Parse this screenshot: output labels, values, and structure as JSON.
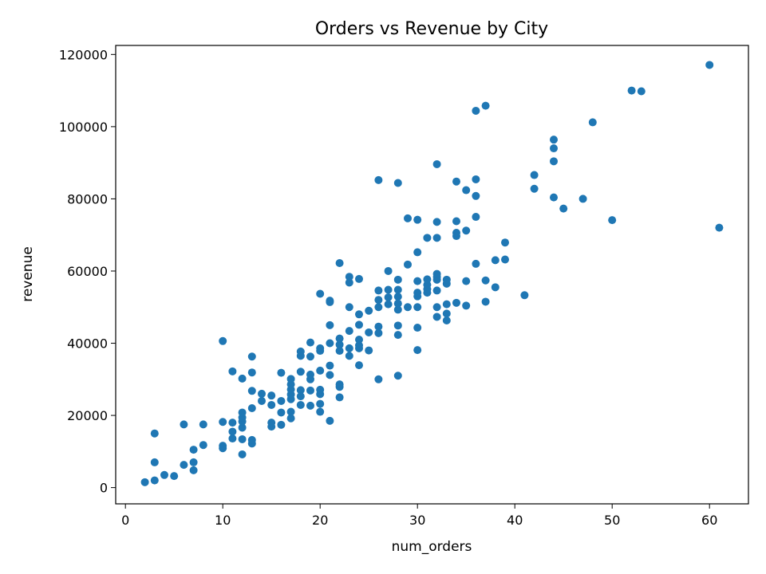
{
  "chart_data": {
    "type": "scatter",
    "title": "Orders vs Revenue by City",
    "xlabel": "num_orders",
    "ylabel": "revenue",
    "xlim": [
      -1,
      64
    ],
    "ylim": [
      -4500,
      122500
    ],
    "xticks": [
      0,
      10,
      20,
      30,
      40,
      50,
      60
    ],
    "yticks": [
      0,
      20000,
      40000,
      60000,
      80000,
      100000,
      120000
    ],
    "grid": false,
    "legend": "none",
    "marker_color": "#1f77b4",
    "points": [
      [
        2,
        1500
      ],
      [
        3,
        2000
      ],
      [
        3,
        7000
      ],
      [
        3,
        15000
      ],
      [
        4,
        3500
      ],
      [
        5,
        3200
      ],
      [
        6,
        6300
      ],
      [
        6,
        17500
      ],
      [
        7,
        4800
      ],
      [
        7,
        7000
      ],
      [
        7,
        10500
      ],
      [
        8,
        11800
      ],
      [
        8,
        17500
      ],
      [
        10,
        10900
      ],
      [
        10,
        11600
      ],
      [
        10,
        18200
      ],
      [
        10,
        40600
      ],
      [
        11,
        13600
      ],
      [
        11,
        15500
      ],
      [
        11,
        18000
      ],
      [
        11,
        32200
      ],
      [
        12,
        9200
      ],
      [
        12,
        13400
      ],
      [
        12,
        16600
      ],
      [
        12,
        18300
      ],
      [
        12,
        19400
      ],
      [
        12,
        20800
      ],
      [
        12,
        30200
      ],
      [
        13,
        12200
      ],
      [
        13,
        13200
      ],
      [
        13,
        22000
      ],
      [
        13,
        26800
      ],
      [
        13,
        31900
      ],
      [
        13,
        36300
      ],
      [
        14,
        24000
      ],
      [
        14,
        26000
      ],
      [
        15,
        16900
      ],
      [
        15,
        18000
      ],
      [
        15,
        22900
      ],
      [
        15,
        25500
      ],
      [
        16,
        17400
      ],
      [
        16,
        20800
      ],
      [
        16,
        24000
      ],
      [
        16,
        31800
      ],
      [
        17,
        19200
      ],
      [
        17,
        21000
      ],
      [
        17,
        24500
      ],
      [
        17,
        25800
      ],
      [
        17,
        27200
      ],
      [
        17,
        28600
      ],
      [
        17,
        30100
      ],
      [
        18,
        22900
      ],
      [
        18,
        25300
      ],
      [
        18,
        27000
      ],
      [
        18,
        32100
      ],
      [
        18,
        36500
      ],
      [
        18,
        37700
      ],
      [
        19,
        22700
      ],
      [
        19,
        26900
      ],
      [
        19,
        30000
      ],
      [
        19,
        31300
      ],
      [
        19,
        36300
      ],
      [
        19,
        40200
      ],
      [
        20,
        21000
      ],
      [
        20,
        23200
      ],
      [
        20,
        25900
      ],
      [
        20,
        27100
      ],
      [
        20,
        32400
      ],
      [
        20,
        37900
      ],
      [
        20,
        38600
      ],
      [
        20,
        53700
      ],
      [
        21,
        18500
      ],
      [
        21,
        31200
      ],
      [
        21,
        33800
      ],
      [
        21,
        40000
      ],
      [
        21,
        45000
      ],
      [
        21,
        51400
      ],
      [
        21,
        51800
      ],
      [
        22,
        25000
      ],
      [
        22,
        27900
      ],
      [
        22,
        28600
      ],
      [
        22,
        37900
      ],
      [
        22,
        39600
      ],
      [
        22,
        41300
      ],
      [
        22,
        62200
      ],
      [
        23,
        36500
      ],
      [
        23,
        38600
      ],
      [
        23,
        43400
      ],
      [
        23,
        50000
      ],
      [
        23,
        56800
      ],
      [
        23,
        58400
      ],
      [
        24,
        33900
      ],
      [
        24,
        38600
      ],
      [
        24,
        39400
      ],
      [
        24,
        41000
      ],
      [
        24,
        45100
      ],
      [
        24,
        48000
      ],
      [
        24,
        57800
      ],
      [
        25,
        38000
      ],
      [
        25,
        43000
      ],
      [
        25,
        49000
      ],
      [
        26,
        30000
      ],
      [
        26,
        42800
      ],
      [
        26,
        44600
      ],
      [
        26,
        50000
      ],
      [
        26,
        52000
      ],
      [
        26,
        54600
      ],
      [
        26,
        85200
      ],
      [
        27,
        50800
      ],
      [
        27,
        52700
      ],
      [
        27,
        54800
      ],
      [
        27,
        60000
      ],
      [
        28,
        31000
      ],
      [
        28,
        42300
      ],
      [
        28,
        44900
      ],
      [
        28,
        49300
      ],
      [
        28,
        51000
      ],
      [
        28,
        52900
      ],
      [
        28,
        54800
      ],
      [
        28,
        57600
      ],
      [
        28,
        84400
      ],
      [
        29,
        50000
      ],
      [
        29,
        61800
      ],
      [
        29,
        74600
      ],
      [
        30,
        38100
      ],
      [
        30,
        44300
      ],
      [
        30,
        50000
      ],
      [
        30,
        53000
      ],
      [
        30,
        54000
      ],
      [
        30,
        57200
      ],
      [
        30,
        65200
      ],
      [
        30,
        74200
      ],
      [
        31,
        54000
      ],
      [
        31,
        55000
      ],
      [
        31,
        56200
      ],
      [
        31,
        57700
      ],
      [
        31,
        69200
      ],
      [
        32,
        47300
      ],
      [
        32,
        50000
      ],
      [
        32,
        54600
      ],
      [
        32,
        57600
      ],
      [
        32,
        58400
      ],
      [
        32,
        59200
      ],
      [
        32,
        69200
      ],
      [
        32,
        73600
      ],
      [
        32,
        89600
      ],
      [
        33,
        46300
      ],
      [
        33,
        48200
      ],
      [
        33,
        50800
      ],
      [
        33,
        56500
      ],
      [
        33,
        57600
      ],
      [
        34,
        51200
      ],
      [
        34,
        69700
      ],
      [
        34,
        70600
      ],
      [
        34,
        73800
      ],
      [
        34,
        84800
      ],
      [
        35,
        50400
      ],
      [
        35,
        57200
      ],
      [
        35,
        71200
      ],
      [
        35,
        82400
      ],
      [
        36,
        62000
      ],
      [
        36,
        75000
      ],
      [
        36,
        80800
      ],
      [
        36,
        85400
      ],
      [
        36,
        104400
      ],
      [
        37,
        51500
      ],
      [
        37,
        57400
      ],
      [
        37,
        105800
      ],
      [
        38,
        55500
      ],
      [
        38,
        63000
      ],
      [
        39,
        63200
      ],
      [
        39,
        67900
      ],
      [
        41,
        53300
      ],
      [
        42,
        82800
      ],
      [
        42,
        86600
      ],
      [
        44,
        80400
      ],
      [
        44,
        90400
      ],
      [
        44,
        94000
      ],
      [
        44,
        96400
      ],
      [
        45,
        77300
      ],
      [
        47,
        80000
      ],
      [
        48,
        101200
      ],
      [
        50,
        74100
      ],
      [
        52,
        110000
      ],
      [
        53,
        109800
      ],
      [
        60,
        117100
      ],
      [
        61,
        72000
      ]
    ]
  }
}
